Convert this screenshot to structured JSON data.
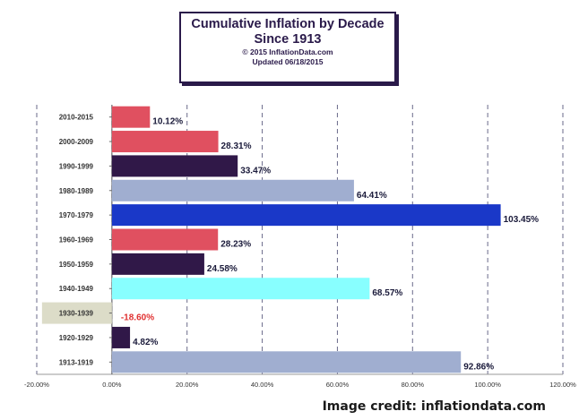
{
  "title": {
    "line1": "Cumulative Inflation by Decade",
    "line2": "Since 1913",
    "line3": "© 2015  InflationData.com",
    "line4": "Updated  06/18/2015"
  },
  "credit": "Image credit: inflationdata.com",
  "chart_data": {
    "type": "bar",
    "orientation": "horizontal",
    "categories": [
      "2010-2015",
      "2000-2009",
      "1990-1999",
      "1980-1989",
      "1970-1979",
      "1960-1969",
      "1950-1959",
      "1940-1949",
      "1930-1939",
      "1920-1929",
      "1913-1919"
    ],
    "values": [
      10.12,
      28.31,
      33.47,
      64.41,
      103.45,
      28.23,
      24.58,
      68.57,
      -18.6,
      4.82,
      92.86
    ],
    "labels": [
      "10.12%",
      "28.31%",
      "33.47%",
      "64.41%",
      "103.45%",
      "28.23%",
      "24.58%",
      "68.57%",
      "-18.60%",
      "4.82%",
      "92.86%"
    ],
    "colors": [
      "#e05060",
      "#e05060",
      "#301848",
      "#a0aed0",
      "#1a38c8",
      "#e05060",
      "#301848",
      "#88ffff",
      "#dcdcc8",
      "#301848",
      "#a0aed0"
    ],
    "negative_label_color": "#e03030",
    "xlim": [
      -20,
      120
    ],
    "xticks": [
      "-20.00%",
      "0.00%",
      "20.00%",
      "40.00%",
      "60.00%",
      "80.00%",
      "100.00%",
      "120.00%"
    ],
    "grid": true
  }
}
